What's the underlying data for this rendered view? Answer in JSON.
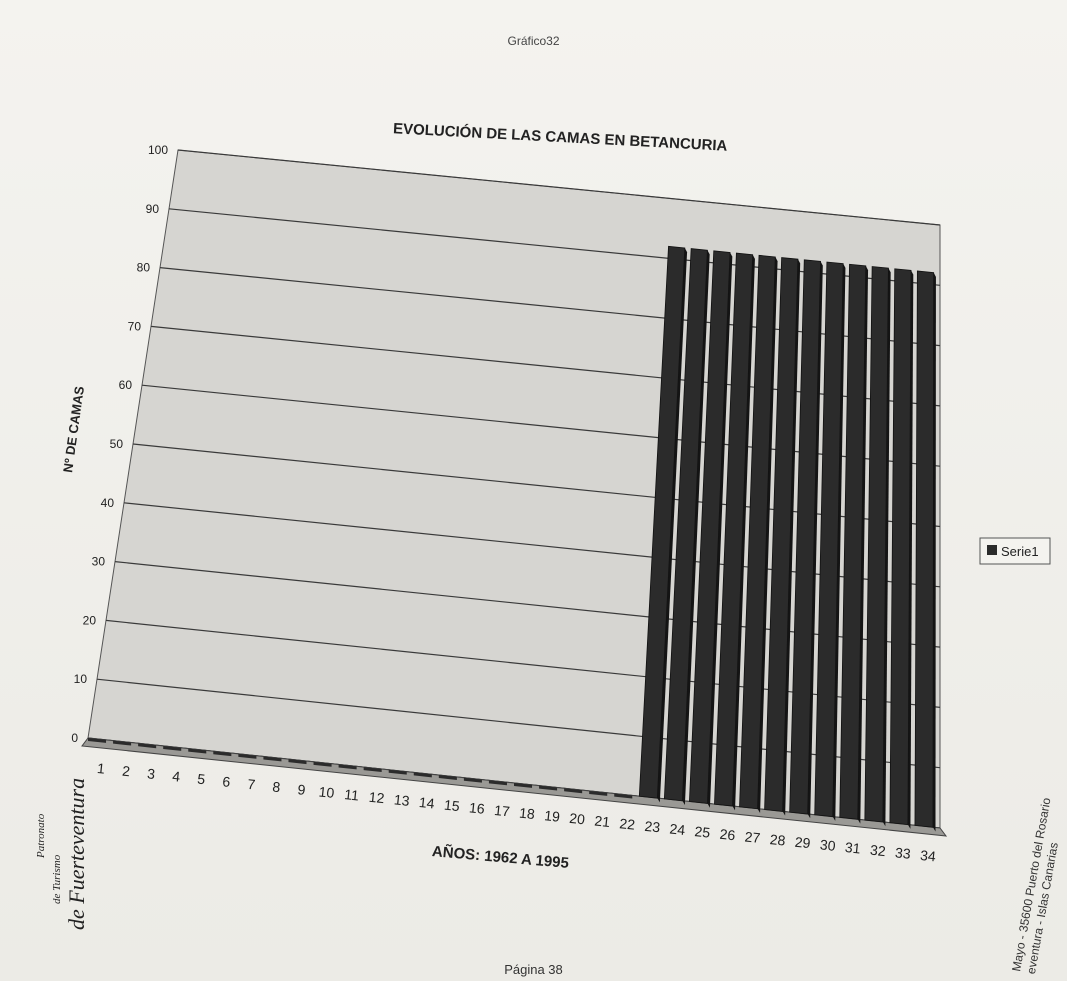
{
  "header": {
    "sheet_name": "Gráfico32"
  },
  "footer": {
    "page_label": "Página 38"
  },
  "logo": {
    "line1": "Patronato",
    "line2": "de Turismo",
    "line3": "de Fuerteventura"
  },
  "address": {
    "line1": "Mayo - 35600 Puerto del Rosario",
    "line2": "eventura - Islas Canarias"
  },
  "colors": {
    "bar": "#2b2b2b",
    "bar_side": "#141414",
    "plot_bg": "#d6d5d1",
    "grid": "#3a3a3a"
  },
  "chart_data": {
    "type": "bar",
    "title": "EVOLUCIÓN DE LAS CAMAS EN BETANCURIA",
    "xlabel": "AÑOS: 1962 A 1995",
    "ylabel": "Nº DE CAMAS",
    "ylim": [
      0,
      100
    ],
    "yticks": [
      0,
      10,
      20,
      30,
      40,
      50,
      60,
      70,
      80,
      90,
      100
    ],
    "grid": true,
    "legend_position": "right",
    "categories": [
      "1",
      "2",
      "3",
      "4",
      "5",
      "6",
      "7",
      "8",
      "9",
      "10",
      "11",
      "12",
      "13",
      "14",
      "15",
      "16",
      "17",
      "18",
      "19",
      "20",
      "21",
      "22",
      "23",
      "24",
      "25",
      "26",
      "27",
      "28",
      "29",
      "30",
      "31",
      "32",
      "33",
      "34"
    ],
    "series": [
      {
        "name": "Serie1",
        "values": [
          0,
          0,
          0,
          0,
          0,
          0,
          0,
          0,
          0,
          0,
          0,
          0,
          0,
          0,
          0,
          0,
          0,
          0,
          0,
          0,
          0,
          0,
          92,
          92,
          92,
          92,
          92,
          92,
          92,
          92,
          92,
          92,
          92,
          92
        ]
      }
    ]
  }
}
